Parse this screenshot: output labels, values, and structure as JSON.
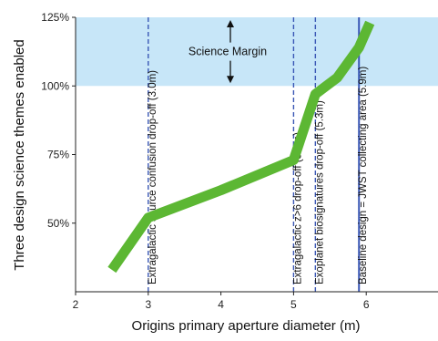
{
  "chart_data": {
    "type": "line",
    "xlabel": "Origins primary aperture diameter (m)",
    "ylabel": "Three design science themes enabled",
    "xlim": [
      2,
      7
    ],
    "ylim": [
      25,
      125
    ],
    "x_ticks": [
      2,
      3,
      4,
      5,
      6
    ],
    "x_tick_labels": [
      "2",
      "3",
      "4",
      "5",
      "6"
    ],
    "y_ticks": [
      50,
      75,
      100,
      125
    ],
    "y_tick_labels": [
      "50%",
      "75%",
      "100%",
      "125%"
    ],
    "grid": false,
    "series": [
      {
        "color": "#5cb733",
        "x": [
          2.5,
          3.0,
          4.0,
          5.0,
          5.3,
          5.6,
          5.9,
          6.05
        ],
        "y": [
          33,
          52,
          62,
          73,
          97,
          103,
          114,
          123
        ]
      }
    ],
    "band": {
      "y_range": [
        100,
        125
      ],
      "label": "Science Margin",
      "color": "#c7e6f8"
    },
    "vertical_lines": [
      {
        "x": 3.0,
        "label": "Extragalactic source confusion drop-off (3.0m)",
        "style": "dashed",
        "color": "#3a57b5"
      },
      {
        "x": 5.0,
        "label": "Extragalactic z>6 drop-off (5.0m)",
        "style": "dashed",
        "color": "#3a57b5"
      },
      {
        "x": 5.3,
        "label": "Exoplanet biosignatures drop-off (5.3m)",
        "style": "dashed",
        "color": "#3a57b5"
      },
      {
        "x": 5.9,
        "label": "Baseline design = JWST collecting area (5.9m)",
        "style": "solid",
        "color": "#3a57b5"
      }
    ]
  }
}
